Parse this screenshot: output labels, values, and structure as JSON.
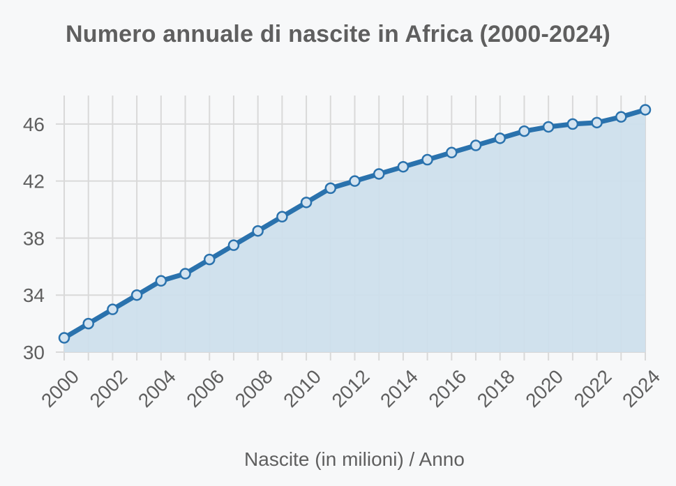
{
  "chart_data": {
    "type": "area",
    "title": "Numero annuale di nascite in Africa (2000-2024)",
    "xlabel": "Nascite (in milioni) / Anno",
    "ylabel": "",
    "x": [
      2000,
      2001,
      2002,
      2003,
      2004,
      2005,
      2006,
      2007,
      2008,
      2009,
      2010,
      2011,
      2012,
      2013,
      2014,
      2015,
      2016,
      2017,
      2018,
      2019,
      2020,
      2021,
      2022,
      2023,
      2024
    ],
    "series": [
      {
        "name": "Nascite (in milioni)",
        "values": [
          31.0,
          32.0,
          33.0,
          34.0,
          35.0,
          35.5,
          36.5,
          37.5,
          38.5,
          39.5,
          40.5,
          41.5,
          42.0,
          42.5,
          43.0,
          43.5,
          44.0,
          44.5,
          45.0,
          45.5,
          45.8,
          46.0,
          46.1,
          46.5,
          47.0
        ]
      }
    ],
    "x_ticks": [
      "2000",
      "2002",
      "2004",
      "2006",
      "2008",
      "2010",
      "2012",
      "2014",
      "2016",
      "2018",
      "2020",
      "2022",
      "2024"
    ],
    "y_ticks": [
      "30",
      "34",
      "38",
      "42",
      "46"
    ],
    "xlim": [
      2000,
      2024
    ],
    "ylim": [
      30,
      48
    ],
    "grid": true,
    "legend": "none",
    "colors": {
      "line": "#2a72ad",
      "fill": "#cddfec",
      "marker_fill": "#d3e3f0",
      "grid": "#d9d9d9",
      "text": "#5f5f5f"
    }
  }
}
